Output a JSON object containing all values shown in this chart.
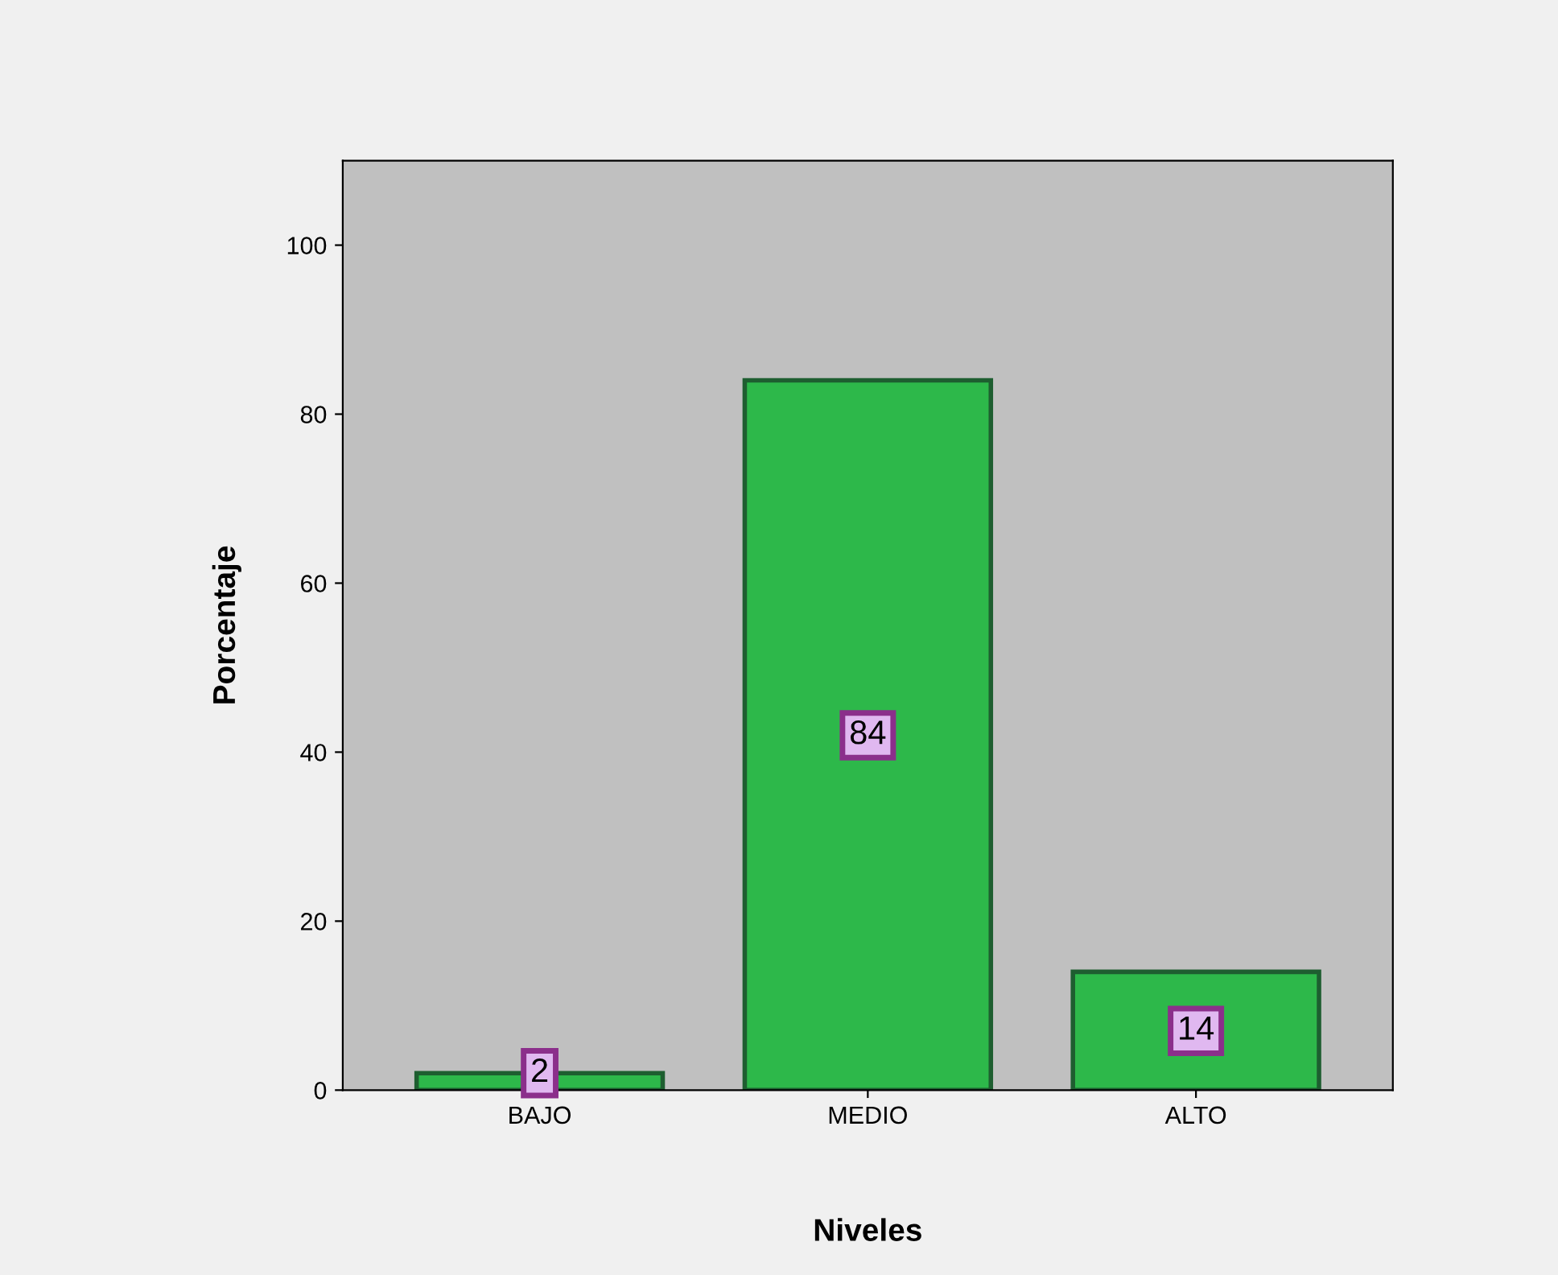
{
  "chart_data": {
    "type": "bar",
    "xlabel": "Niveles",
    "ylabel": "Porcentaje",
    "categories": [
      "BAJO",
      "MEDIO",
      "ALTO"
    ],
    "values": [
      2,
      84,
      14
    ],
    "color": "#2db84a",
    "ylim": [
      0,
      110
    ],
    "yticks": [
      0,
      20,
      40,
      60,
      80,
      100
    ],
    "data_labels": true,
    "grid": false
  }
}
